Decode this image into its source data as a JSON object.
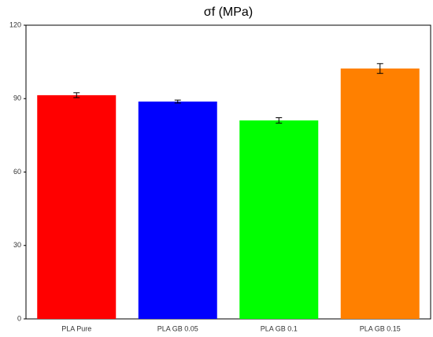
{
  "chart_data": {
    "type": "bar",
    "title": "σf (MPa)",
    "categories": [
      "PLA Pure",
      "PLA GB 0.05",
      "PLA GB 0.1",
      "PLA GB 0.15"
    ],
    "values": [
      91.4,
      88.8,
      81.1,
      102.3
    ],
    "errors": [
      1.0,
      0.6,
      1.1,
      2.0
    ],
    "colors": [
      "#ff0000",
      "#0000ff",
      "#00ff00",
      "#ff8000"
    ],
    "ylim": [
      0,
      120
    ],
    "yticks": [
      0,
      30,
      60,
      90,
      120
    ]
  }
}
